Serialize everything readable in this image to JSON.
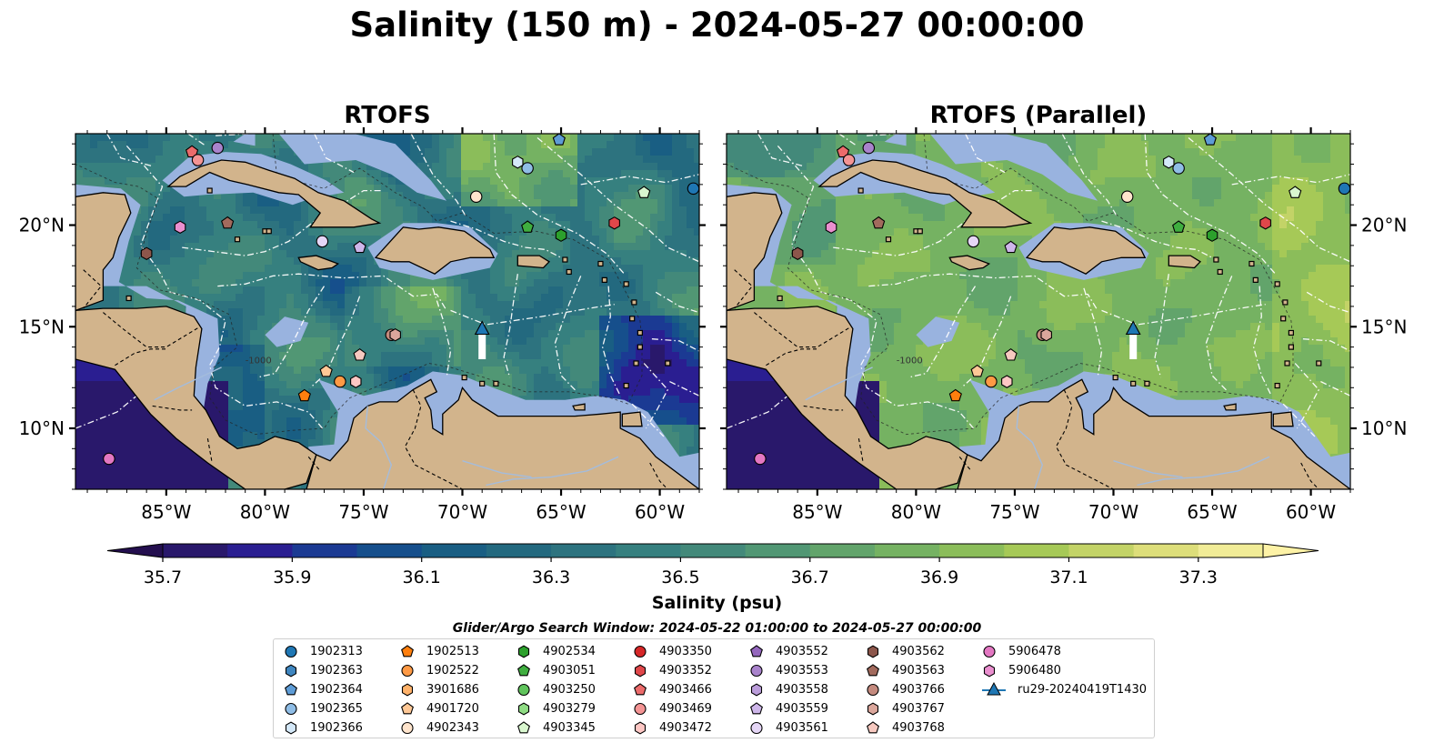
{
  "title": "Salinity (150 m) - 2024-05-27 00:00:00",
  "panels": [
    {
      "title": "RTOFS"
    },
    {
      "title": "RTOFS (Parallel)"
    }
  ],
  "axes": {
    "lon_ticks": [
      "85°W",
      "80°W",
      "75°W",
      "70°W",
      "65°W",
      "60°W"
    ],
    "lat_ticks": [
      "20°N",
      "15°N",
      "10°N"
    ],
    "lon_range": [
      -89.6,
      -58.0
    ],
    "lat_range": [
      7.0,
      24.5
    ],
    "isobath_label": "-1000"
  },
  "colorbar": {
    "label": "Salinity (psu)",
    "ticks": [
      "35.7",
      "35.9",
      "36.1",
      "36.3",
      "36.5",
      "36.7",
      "36.9",
      "37.1",
      "37.3"
    ],
    "vmin": 35.7,
    "vmax": 37.4,
    "step": 0.1,
    "extend": "both",
    "colormap": "haline",
    "colors": [
      "#29186b",
      "#2a1e91",
      "#1b3a93",
      "#164f8c",
      "#195e83",
      "#23697f",
      "#2d737f",
      "#36807f",
      "#43897a",
      "#519774",
      "#62a46b",
      "#75b262",
      "#8bbd5a",
      "#a6c957",
      "#c3d367",
      "#ddde7a",
      "#f1ec97"
    ]
  },
  "search_window": "Glider/Argo Search Window: 2024-05-22 01:00:00 to 2024-05-27 00:00:00",
  "legend": [
    {
      "label": "1902313",
      "marker": "circle",
      "color": "#1f77b4"
    },
    {
      "label": "1902363",
      "marker": "hexagon",
      "color": "#3f86c0"
    },
    {
      "label": "1902364",
      "marker": "pentagon",
      "color": "#5e9cd6"
    },
    {
      "label": "1902365",
      "marker": "circle",
      "color": "#8fbde6"
    },
    {
      "label": "1902366",
      "marker": "hexagon",
      "color": "#d4e8f8"
    },
    {
      "label": "1902513",
      "marker": "pentagon",
      "color": "#ff7f0e"
    },
    {
      "label": "1902522",
      "marker": "circle",
      "color": "#ff9a45"
    },
    {
      "label": "3901686",
      "marker": "hexagon",
      "color": "#ffb26a"
    },
    {
      "label": "4901720",
      "marker": "pentagon",
      "color": "#ffc896"
    },
    {
      "label": "4902343",
      "marker": "circle",
      "color": "#ffe4cc"
    },
    {
      "label": "4902534",
      "marker": "hexagon",
      "color": "#2ca02c"
    },
    {
      "label": "4903051",
      "marker": "pentagon",
      "color": "#3fae3f"
    },
    {
      "label": "4903250",
      "marker": "circle",
      "color": "#60c45c"
    },
    {
      "label": "4903279",
      "marker": "hexagon",
      "color": "#8fdc84"
    },
    {
      "label": "4903345",
      "marker": "pentagon",
      "color": "#d9f7cf"
    },
    {
      "label": "4903350",
      "marker": "circle",
      "color": "#d62728"
    },
    {
      "label": "4903352",
      "marker": "hexagon",
      "color": "#e0474a"
    },
    {
      "label": "4903466",
      "marker": "pentagon",
      "color": "#ec6b6b"
    },
    {
      "label": "4903469",
      "marker": "circle",
      "color": "#f49494"
    },
    {
      "label": "4903472",
      "marker": "hexagon",
      "color": "#fdc7c4"
    },
    {
      "label": "4903552",
      "marker": "pentagon",
      "color": "#9467bd"
    },
    {
      "label": "4903553",
      "marker": "circle",
      "color": "#a983cc"
    },
    {
      "label": "4903558",
      "marker": "hexagon",
      "color": "#bb9ddb"
    },
    {
      "label": "4903559",
      "marker": "pentagon",
      "color": "#ceb6ea"
    },
    {
      "label": "4903561",
      "marker": "circle",
      "color": "#e5d6f6"
    },
    {
      "label": "4903562",
      "marker": "hexagon",
      "color": "#8c564b"
    },
    {
      "label": "4903563",
      "marker": "pentagon",
      "color": "#a26a5d"
    },
    {
      "label": "4903766",
      "marker": "circle",
      "color": "#c48a7e"
    },
    {
      "label": "4903767",
      "marker": "hexagon",
      "color": "#dba79c"
    },
    {
      "label": "4903768",
      "marker": "pentagon",
      "color": "#f7c9c0"
    },
    {
      "label": "5906478",
      "marker": "circle",
      "color": "#e377c2"
    },
    {
      "label": "5906480",
      "marker": "hexagon",
      "color": "#ea8fcf"
    },
    {
      "label": "ru29-20240419T1430",
      "marker": "triangle-line",
      "color": "#1f77b4"
    }
  ],
  "floats": [
    {
      "id": "1902313",
      "lon": -58.3,
      "lat": 21.8
    },
    {
      "id": "1902364",
      "lon": -65.1,
      "lat": 24.2
    },
    {
      "id": "1902365",
      "lon": -66.7,
      "lat": 22.8
    },
    {
      "id": "1902366",
      "lon": -67.2,
      "lat": 23.1
    },
    {
      "id": "1902513",
      "lon": -78.0,
      "lat": 11.6
    },
    {
      "id": "1902522",
      "lon": -76.2,
      "lat": 12.3
    },
    {
      "id": "4901720",
      "lon": -76.9,
      "lat": 12.8
    },
    {
      "id": "4902343",
      "lon": -69.3,
      "lat": 21.4
    },
    {
      "id": "4902534",
      "lon": -65.0,
      "lat": 19.5
    },
    {
      "id": "4903051",
      "lon": -66.7,
      "lat": 19.9
    },
    {
      "id": "4903345",
      "lon": -60.8,
      "lat": 21.6
    },
    {
      "id": "4903352",
      "lon": -62.3,
      "lat": 20.1
    },
    {
      "id": "4903466",
      "lon": -83.7,
      "lat": 23.6
    },
    {
      "id": "4903469",
      "lon": -83.4,
      "lat": 23.2
    },
    {
      "id": "4903472",
      "lon": -75.4,
      "lat": 12.3
    },
    {
      "id": "4903553",
      "lon": -82.4,
      "lat": 23.8
    },
    {
      "id": "4903559",
      "lon": -75.2,
      "lat": 18.9
    },
    {
      "id": "4903561",
      "lon": -77.1,
      "lat": 19.2
    },
    {
      "id": "4903562",
      "lon": -86.0,
      "lat": 18.6
    },
    {
      "id": "4903563",
      "lon": -81.9,
      "lat": 20.1
    },
    {
      "id": "4903766",
      "lon": -73.6,
      "lat": 14.6
    },
    {
      "id": "4903767",
      "lon": -73.4,
      "lat": 14.6
    },
    {
      "id": "4903768",
      "lon": -75.2,
      "lat": 13.6
    },
    {
      "id": "5906478",
      "lon": -87.9,
      "lat": 8.5
    },
    {
      "id": "5906480",
      "lon": -84.3,
      "lat": 19.9
    }
  ],
  "glider": {
    "id": "ru29-20240419T1430",
    "lon": -69.0,
    "lat_start": 13.4,
    "lat_end": 14.9
  }
}
